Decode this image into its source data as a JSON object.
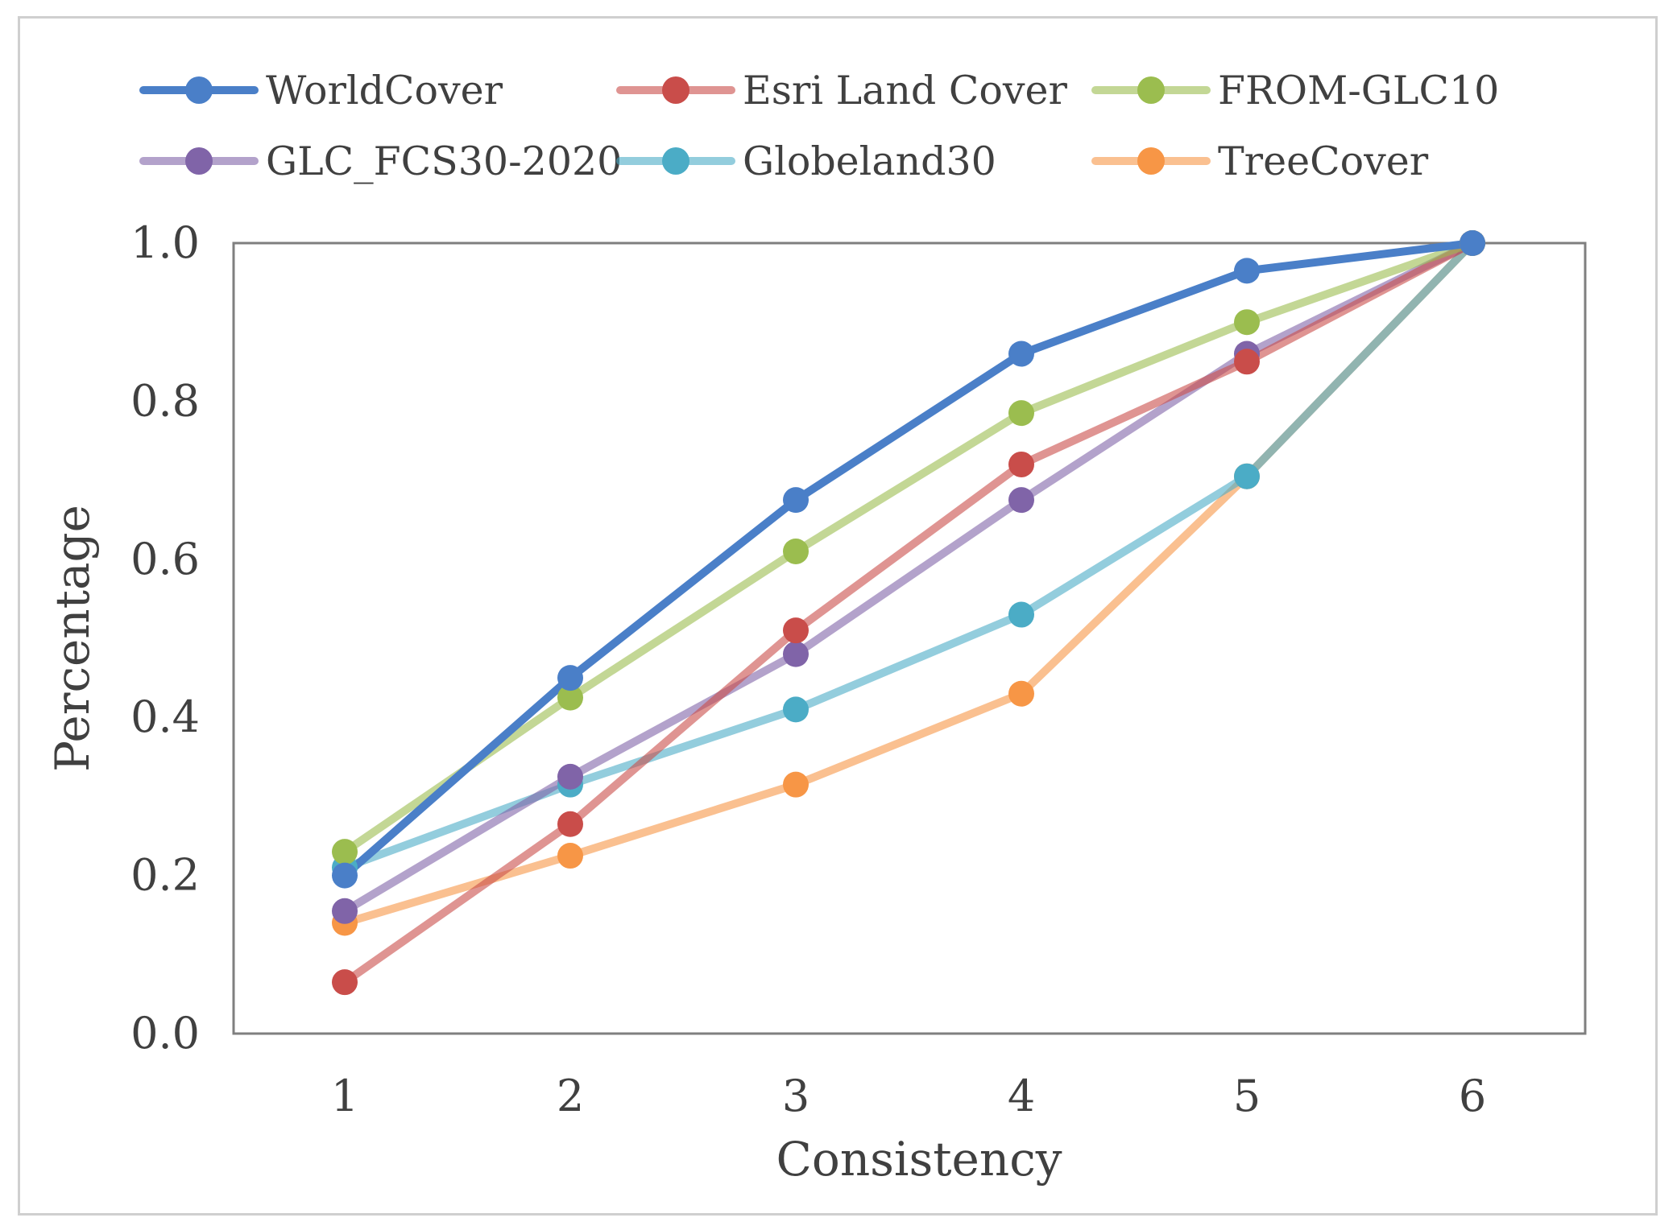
{
  "chart_data": {
    "type": "line",
    "title": "",
    "xlabel": "Consistency",
    "ylabel": "Percentage",
    "categories": [
      "1",
      "2",
      "3",
      "4",
      "5",
      "6"
    ],
    "x": [
      1,
      2,
      3,
      4,
      5,
      6
    ],
    "ylim": [
      0.0,
      1.0
    ],
    "yticks": [
      "0.0",
      "0.2",
      "0.4",
      "0.6",
      "0.8",
      "1.0"
    ],
    "grid": false,
    "legend_position": "top",
    "series": [
      {
        "name": "WorldCover",
        "color": "#4a7fc8",
        "values": [
          0.2,
          0.45,
          0.675,
          0.86,
          0.965,
          1.0
        ]
      },
      {
        "name": "Esri Land Cover",
        "color": "#c94d4a",
        "values": [
          0.065,
          0.265,
          0.51,
          0.72,
          0.85,
          1.0
        ]
      },
      {
        "name": "FROM-GLC10",
        "color": "#9bbd4f",
        "values": [
          0.23,
          0.425,
          0.61,
          0.785,
          0.9,
          1.0
        ]
      },
      {
        "name": "GLC_FCS30-2020",
        "color": "#8064a8",
        "values": [
          0.155,
          0.325,
          0.48,
          0.675,
          0.86,
          1.0
        ]
      },
      {
        "name": "Globeland30",
        "color": "#4bacc6",
        "values": [
          0.21,
          0.315,
          0.41,
          0.53,
          0.705,
          1.0
        ]
      },
      {
        "name": "TreeCover",
        "color": "#f79646",
        "values": [
          0.14,
          0.225,
          0.315,
          0.43,
          0.705,
          1.0
        ]
      }
    ]
  }
}
